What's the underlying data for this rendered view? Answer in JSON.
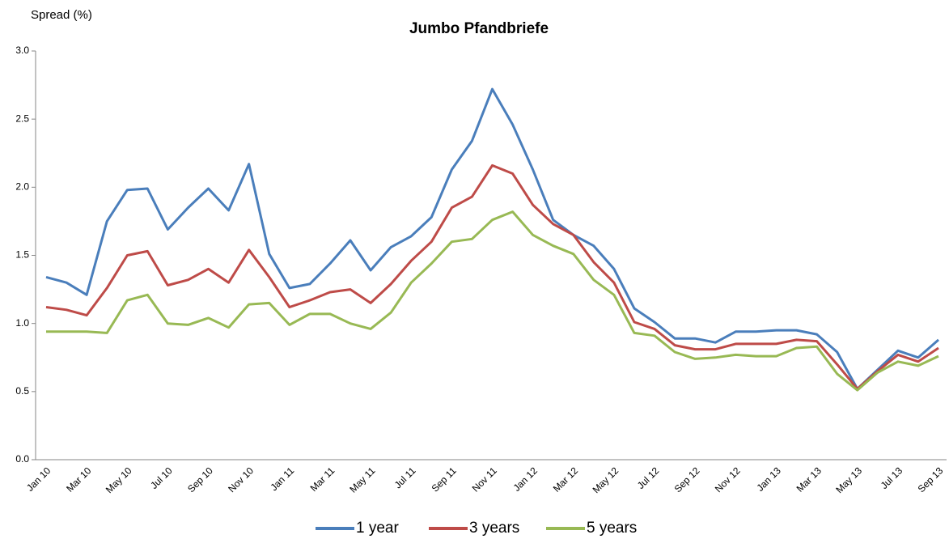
{
  "chart_data": {
    "type": "line",
    "title": "Jumbo Pfandbriefe",
    "y_label": "Spread (%)",
    "categories": [
      "Jan 10",
      null,
      "Mar 10",
      null,
      "May 10",
      null,
      "Jul 10",
      null,
      "Sep 10",
      null,
      "Nov 10",
      null,
      "Jan 11",
      null,
      "Mar 11",
      null,
      "May 11",
      null,
      "Jul 11",
      null,
      "Sep 11",
      null,
      "Nov 11",
      null,
      "Jan 12",
      null,
      "Mar 12",
      null,
      "May 12",
      null,
      "Jul 12",
      null,
      "Sep 12",
      null,
      "Nov 12",
      null,
      "Jan 13",
      null,
      "Mar 13",
      null,
      "May 13",
      null,
      "Jul 13",
      null,
      "Sep 13"
    ],
    "series": [
      {
        "name": "1 year",
        "color": "#4a7ebb",
        "values": [
          1.34,
          1.3,
          1.21,
          1.75,
          1.98,
          1.99,
          1.69,
          1.85,
          1.99,
          1.83,
          2.17,
          1.51,
          1.26,
          1.29,
          1.44,
          1.61,
          1.39,
          1.56,
          1.64,
          1.78,
          2.13,
          2.34,
          2.72,
          2.46,
          2.13,
          1.76,
          1.65,
          1.57,
          1.4,
          1.11,
          1.01,
          0.89,
          0.89,
          0.86,
          0.94,
          0.94,
          0.95,
          0.95,
          0.92,
          0.79,
          0.52,
          0.66,
          0.8,
          0.75,
          0.88
        ]
      },
      {
        "name": "3 years",
        "color": "#be4b48",
        "values": [
          1.12,
          1.1,
          1.06,
          1.26,
          1.5,
          1.53,
          1.28,
          1.32,
          1.4,
          1.3,
          1.54,
          1.34,
          1.12,
          1.17,
          1.23,
          1.25,
          1.15,
          1.29,
          1.46,
          1.6,
          1.85,
          1.93,
          2.16,
          2.1,
          1.87,
          1.73,
          1.65,
          1.45,
          1.3,
          1.01,
          0.96,
          0.84,
          0.81,
          0.81,
          0.85,
          0.85,
          0.85,
          0.88,
          0.87,
          0.7,
          0.52,
          0.65,
          0.77,
          0.72,
          0.82
        ]
      },
      {
        "name": "5 years",
        "color": "#98b954",
        "values": [
          0.94,
          0.94,
          0.94,
          0.93,
          1.17,
          1.21,
          1.0,
          0.99,
          1.04,
          0.97,
          1.14,
          1.15,
          0.99,
          1.07,
          1.07,
          1.0,
          0.96,
          1.08,
          1.3,
          1.44,
          1.6,
          1.62,
          1.76,
          1.82,
          1.65,
          1.57,
          1.51,
          1.32,
          1.21,
          0.93,
          0.91,
          0.79,
          0.74,
          0.75,
          0.77,
          0.76,
          0.76,
          0.82,
          0.83,
          0.63,
          0.51,
          0.64,
          0.72,
          0.69,
          0.76
        ]
      }
    ],
    "ylim": [
      0,
      3
    ],
    "yticks": [
      {
        "value": 0,
        "label": "0.0"
      },
      0.5,
      {
        "value": 1,
        "label": "1.0"
      },
      1.5,
      {
        "value": 2,
        "label": "2.0"
      },
      2.5,
      {
        "value": 3,
        "label": "3.0"
      }
    ],
    "grid": false,
    "legend": "bottom"
  }
}
